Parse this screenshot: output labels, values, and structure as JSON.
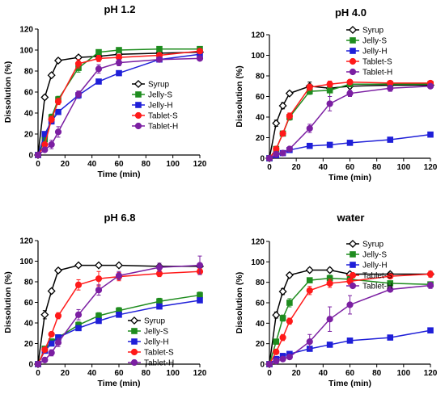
{
  "chart_data": [
    {
      "type": "line",
      "title": "pH 1.2",
      "xlabel": "Time (min)",
      "ylabel": "Dissolution (%)",
      "xlim": [
        0,
        120
      ],
      "ylim": [
        0,
        120
      ],
      "xticks": [
        "0",
        "20",
        "40",
        "60",
        "80",
        "100",
        "120"
      ],
      "yticks": [
        "0",
        "20",
        "40",
        "60",
        "80",
        "100",
        "120"
      ],
      "legend_position": "center-right",
      "x": [
        0,
        5,
        10,
        15,
        30,
        45,
        60,
        90,
        120
      ],
      "series": [
        {
          "name": "Syrup",
          "values": [
            0,
            55,
            76,
            90,
            93,
            94,
            96,
            97,
            98
          ],
          "errors": [
            0,
            2,
            2,
            2,
            2,
            2,
            2,
            2,
            2
          ]
        },
        {
          "name": "Jelly-S",
          "values": [
            0,
            15,
            36,
            53,
            83,
            98,
            100,
            101,
            101
          ],
          "errors": [
            0,
            2,
            3,
            3,
            4,
            2,
            2,
            2,
            2
          ]
        },
        {
          "name": "Jelly-H",
          "values": [
            0,
            20,
            32,
            41,
            57,
            70,
            78,
            91,
            96
          ],
          "errors": [
            0,
            2,
            2,
            2,
            3,
            2,
            2,
            2,
            2
          ]
        },
        {
          "name": "Tablet-S",
          "values": [
            0,
            10,
            34,
            51,
            87,
            92,
            93,
            95,
            99
          ],
          "errors": [
            0,
            2,
            3,
            3,
            4,
            3,
            3,
            2,
            2
          ]
        },
        {
          "name": "Tablet-H",
          "values": [
            0,
            5,
            10,
            22,
            58,
            82,
            88,
            91,
            92
          ],
          "errors": [
            0,
            2,
            4,
            5,
            3,
            4,
            3,
            2,
            2
          ]
        }
      ]
    },
    {
      "type": "line",
      "title": "pH 4.0",
      "xlabel": "Time (min)",
      "ylabel": "Dissolution (%)",
      "xlim": [
        0,
        120
      ],
      "ylim": [
        0,
        120
      ],
      "xticks": [
        "0",
        "20",
        "40",
        "60",
        "80",
        "100",
        "120"
      ],
      "yticks": [
        "0",
        "20",
        "40",
        "60",
        "80",
        "100",
        "120"
      ],
      "legend_position": "top-right",
      "x": [
        0,
        5,
        10,
        15,
        30,
        45,
        60,
        90,
        120
      ],
      "series": [
        {
          "name": "Syrup",
          "values": [
            0,
            34,
            51,
            63,
            70,
            68,
            70,
            71,
            71
          ],
          "errors": [
            0,
            3,
            3,
            2,
            4,
            2,
            2,
            2,
            2
          ]
        },
        {
          "name": "Jelly-S",
          "values": [
            0,
            9,
            24,
            40,
            65,
            66,
            72,
            72,
            72
          ],
          "errors": [
            0,
            2,
            2,
            3,
            3,
            6,
            2,
            2,
            2
          ]
        },
        {
          "name": "Jelly-H",
          "values": [
            0,
            3,
            5,
            8,
            12,
            13,
            15,
            18,
            23
          ],
          "errors": [
            0,
            1,
            1,
            1,
            1,
            1,
            1,
            1,
            2
          ]
        },
        {
          "name": "Tablet-S",
          "values": [
            0,
            9,
            24,
            41,
            69,
            72,
            74,
            73,
            73
          ],
          "errors": [
            0,
            2,
            2,
            3,
            3,
            3,
            2,
            2,
            2
          ]
        },
        {
          "name": "Tablet-H",
          "values": [
            0,
            4,
            5,
            9,
            29,
            53,
            63,
            68,
            70
          ],
          "errors": [
            0,
            1,
            1,
            2,
            4,
            7,
            3,
            3,
            2
          ]
        }
      ]
    },
    {
      "type": "line",
      "title": "pH 6.8",
      "xlabel": "Time (min)",
      "ylabel": "Dissolution (%)",
      "xlim": [
        0,
        120
      ],
      "ylim": [
        0,
        120
      ],
      "xticks": [
        "0",
        "20",
        "40",
        "60",
        "80",
        "100",
        "120"
      ],
      "yticks": [
        "0",
        "20",
        "40",
        "60",
        "80",
        "100",
        "120"
      ],
      "legend_position": "bottom-right",
      "x": [
        0,
        5,
        10,
        15,
        30,
        45,
        60,
        90,
        120
      ],
      "series": [
        {
          "name": "Syrup",
          "values": [
            0,
            48,
            71,
            91,
            96,
            96,
            96,
            95,
            95
          ],
          "errors": [
            0,
            4,
            2,
            2,
            1,
            1,
            1,
            1,
            1
          ]
        },
        {
          "name": "Jelly-S",
          "values": [
            0,
            15,
            22,
            26,
            38,
            47,
            52,
            61,
            67
          ],
          "errors": [
            0,
            2,
            2,
            2,
            3,
            3,
            3,
            3,
            3
          ]
        },
        {
          "name": "Jelly-H",
          "values": [
            0,
            13,
            20,
            26,
            35,
            42,
            48,
            56,
            62
          ],
          "errors": [
            0,
            2,
            2,
            2,
            2,
            2,
            2,
            2,
            2
          ]
        },
        {
          "name": "Tablet-S",
          "values": [
            0,
            14,
            29,
            47,
            77,
            83,
            85,
            88,
            90
          ],
          "errors": [
            0,
            2,
            2,
            3,
            5,
            7,
            4,
            3,
            3
          ]
        },
        {
          "name": "Tablet-H",
          "values": [
            0,
            4,
            11,
            21,
            48,
            72,
            86,
            94,
            96
          ],
          "errors": [
            0,
            2,
            3,
            4,
            5,
            5,
            4,
            4,
            9
          ]
        }
      ]
    },
    {
      "type": "line",
      "title": "water",
      "xlabel": "Time (min)",
      "ylabel": "Dissolution (%)",
      "xlim": [
        0,
        120
      ],
      "ylim": [
        0,
        120
      ],
      "xticks": [
        "0",
        "20",
        "40",
        "60",
        "80",
        "100",
        "120"
      ],
      "yticks": [
        "0",
        "20",
        "40",
        "60",
        "80",
        "100",
        "120"
      ],
      "legend_position": "top-right",
      "x": [
        0,
        5,
        10,
        15,
        30,
        45,
        60,
        90,
        120
      ],
      "series": [
        {
          "name": "Syrup",
          "values": [
            0,
            48,
            71,
            87,
            92,
            92,
            88,
            88,
            88
          ],
          "errors": [
            0,
            3,
            3,
            2,
            2,
            2,
            2,
            2,
            2
          ]
        },
        {
          "name": "Jelly-S",
          "values": [
            0,
            22,
            45,
            60,
            82,
            84,
            83,
            79,
            78
          ],
          "errors": [
            0,
            2,
            3,
            4,
            2,
            3,
            2,
            2,
            2
          ]
        },
        {
          "name": "Jelly-H",
          "values": [
            0,
            5,
            8,
            10,
            15,
            19,
            23,
            26,
            33
          ],
          "errors": [
            0,
            1,
            1,
            1,
            1,
            1,
            1,
            1,
            2
          ]
        },
        {
          "name": "Tablet-S",
          "values": [
            0,
            12,
            26,
            42,
            72,
            79,
            81,
            86,
            88
          ],
          "errors": [
            0,
            2,
            3,
            3,
            4,
            4,
            3,
            2,
            3
          ]
        },
        {
          "name": "Tablet-H",
          "values": [
            0,
            3,
            5,
            7,
            22,
            44,
            58,
            73,
            77
          ],
          "errors": [
            0,
            1,
            1,
            2,
            7,
            12,
            9,
            2,
            3
          ]
        }
      ]
    }
  ],
  "series_style": {
    "Syrup": {
      "color": "#000000",
      "fill": "#ffffff",
      "marker": "diamond"
    },
    "Jelly-S": {
      "color": "#1e8c1e",
      "fill": "#1e8c1e",
      "marker": "square"
    },
    "Jelly-H": {
      "color": "#1f1fd8",
      "fill": "#1f1fd8",
      "marker": "square"
    },
    "Tablet-S": {
      "color": "#ff1a1a",
      "fill": "#ff1a1a",
      "marker": "circle"
    },
    "Tablet-H": {
      "color": "#7b1fa2",
      "fill": "#7b1fa2",
      "marker": "circle"
    }
  }
}
